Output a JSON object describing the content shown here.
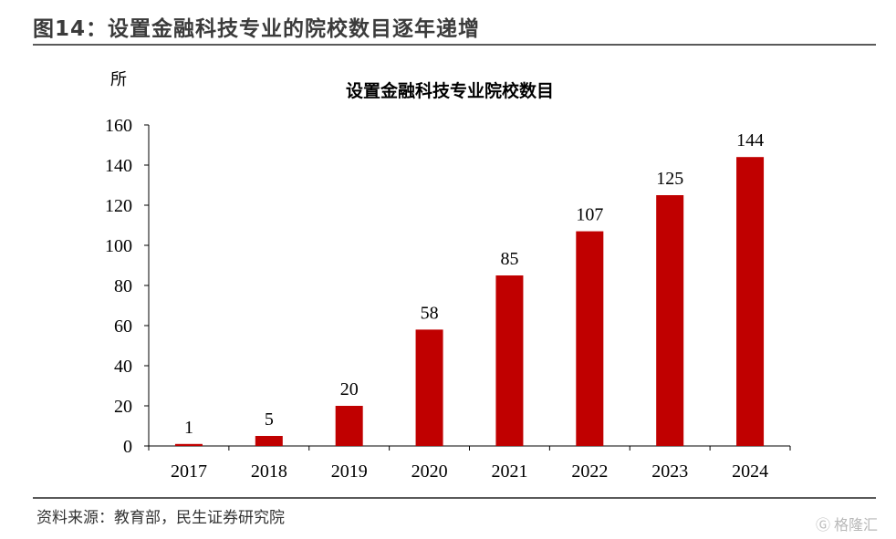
{
  "figure": {
    "title": "图14：设置金融科技专业的院校数目逐年递增",
    "source": "资料来源：教育部，民生证券研究院",
    "watermark": "格隆汇",
    "watermark_icon": "glh-logo-icon"
  },
  "chart_data": {
    "type": "bar",
    "title": "设置金融科技专业院校数目",
    "ylabel": "所",
    "xlabel": "",
    "categories": [
      "2017",
      "2018",
      "2019",
      "2020",
      "2021",
      "2022",
      "2023",
      "2024"
    ],
    "values": [
      1,
      5,
      20,
      58,
      85,
      107,
      125,
      144
    ],
    "ylim": [
      0,
      160
    ],
    "yticks": [
      0,
      20,
      40,
      60,
      80,
      100,
      120,
      140,
      160
    ],
    "bar_color": "#c00000",
    "grid": false,
    "legend": "none",
    "data_labels": true
  }
}
